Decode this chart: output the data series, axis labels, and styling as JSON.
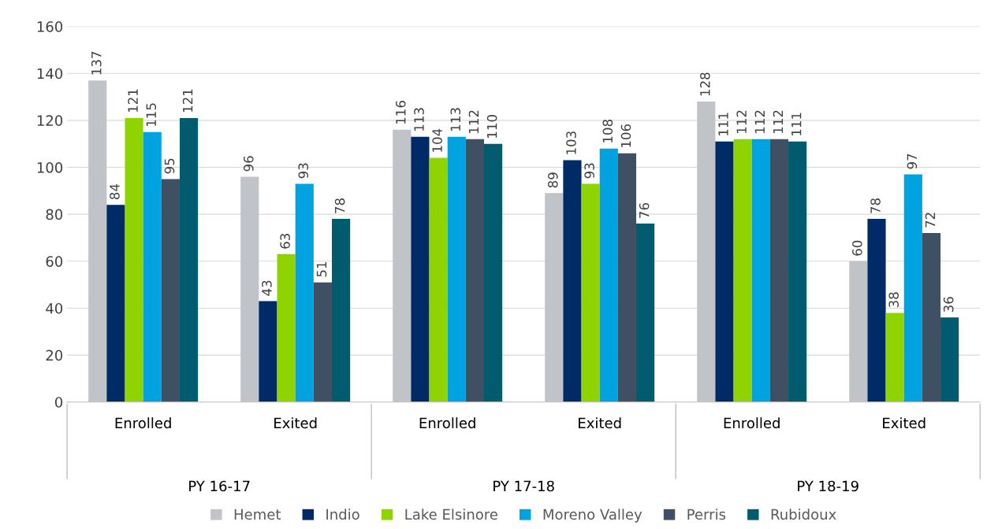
{
  "chart_data": {
    "type": "bar",
    "categories": [
      "Enrolled",
      "Exited",
      "Enrolled",
      "Exited",
      "Enrolled",
      "Exited"
    ],
    "annotations": [
      "PY 16-17",
      "PY 17-18",
      "PY 18-19"
    ],
    "series": [
      {
        "name": "Hemet",
        "color": "#c0c4c8",
        "values": [
          137,
          96,
          116,
          89,
          128,
          60
        ]
      },
      {
        "name": "Indio",
        "color": "#002b66",
        "values": [
          84,
          43,
          113,
          103,
          111,
          78
        ]
      },
      {
        "name": "Lake Elsinore",
        "color": "#8fd400",
        "values": [
          121,
          63,
          104,
          93,
          112,
          38
        ]
      },
      {
        "name": "Moreno Valley",
        "color": "#00a3e0",
        "values": [
          115,
          93,
          113,
          108,
          112,
          97
        ]
      },
      {
        "name": "Perris",
        "color": "#3f5063",
        "values": [
          95,
          51,
          112,
          106,
          112,
          72
        ]
      },
      {
        "name": "Rubidoux",
        "color": "#005b6e",
        "values": [
          121,
          78,
          110,
          76,
          111,
          36
        ]
      }
    ],
    "ylim": [
      0,
      160
    ],
    "yticks": [
      0,
      20,
      40,
      60,
      80,
      100,
      120,
      140,
      160
    ],
    "grid": "y",
    "legend": "bottom",
    "data_labels": true
  }
}
